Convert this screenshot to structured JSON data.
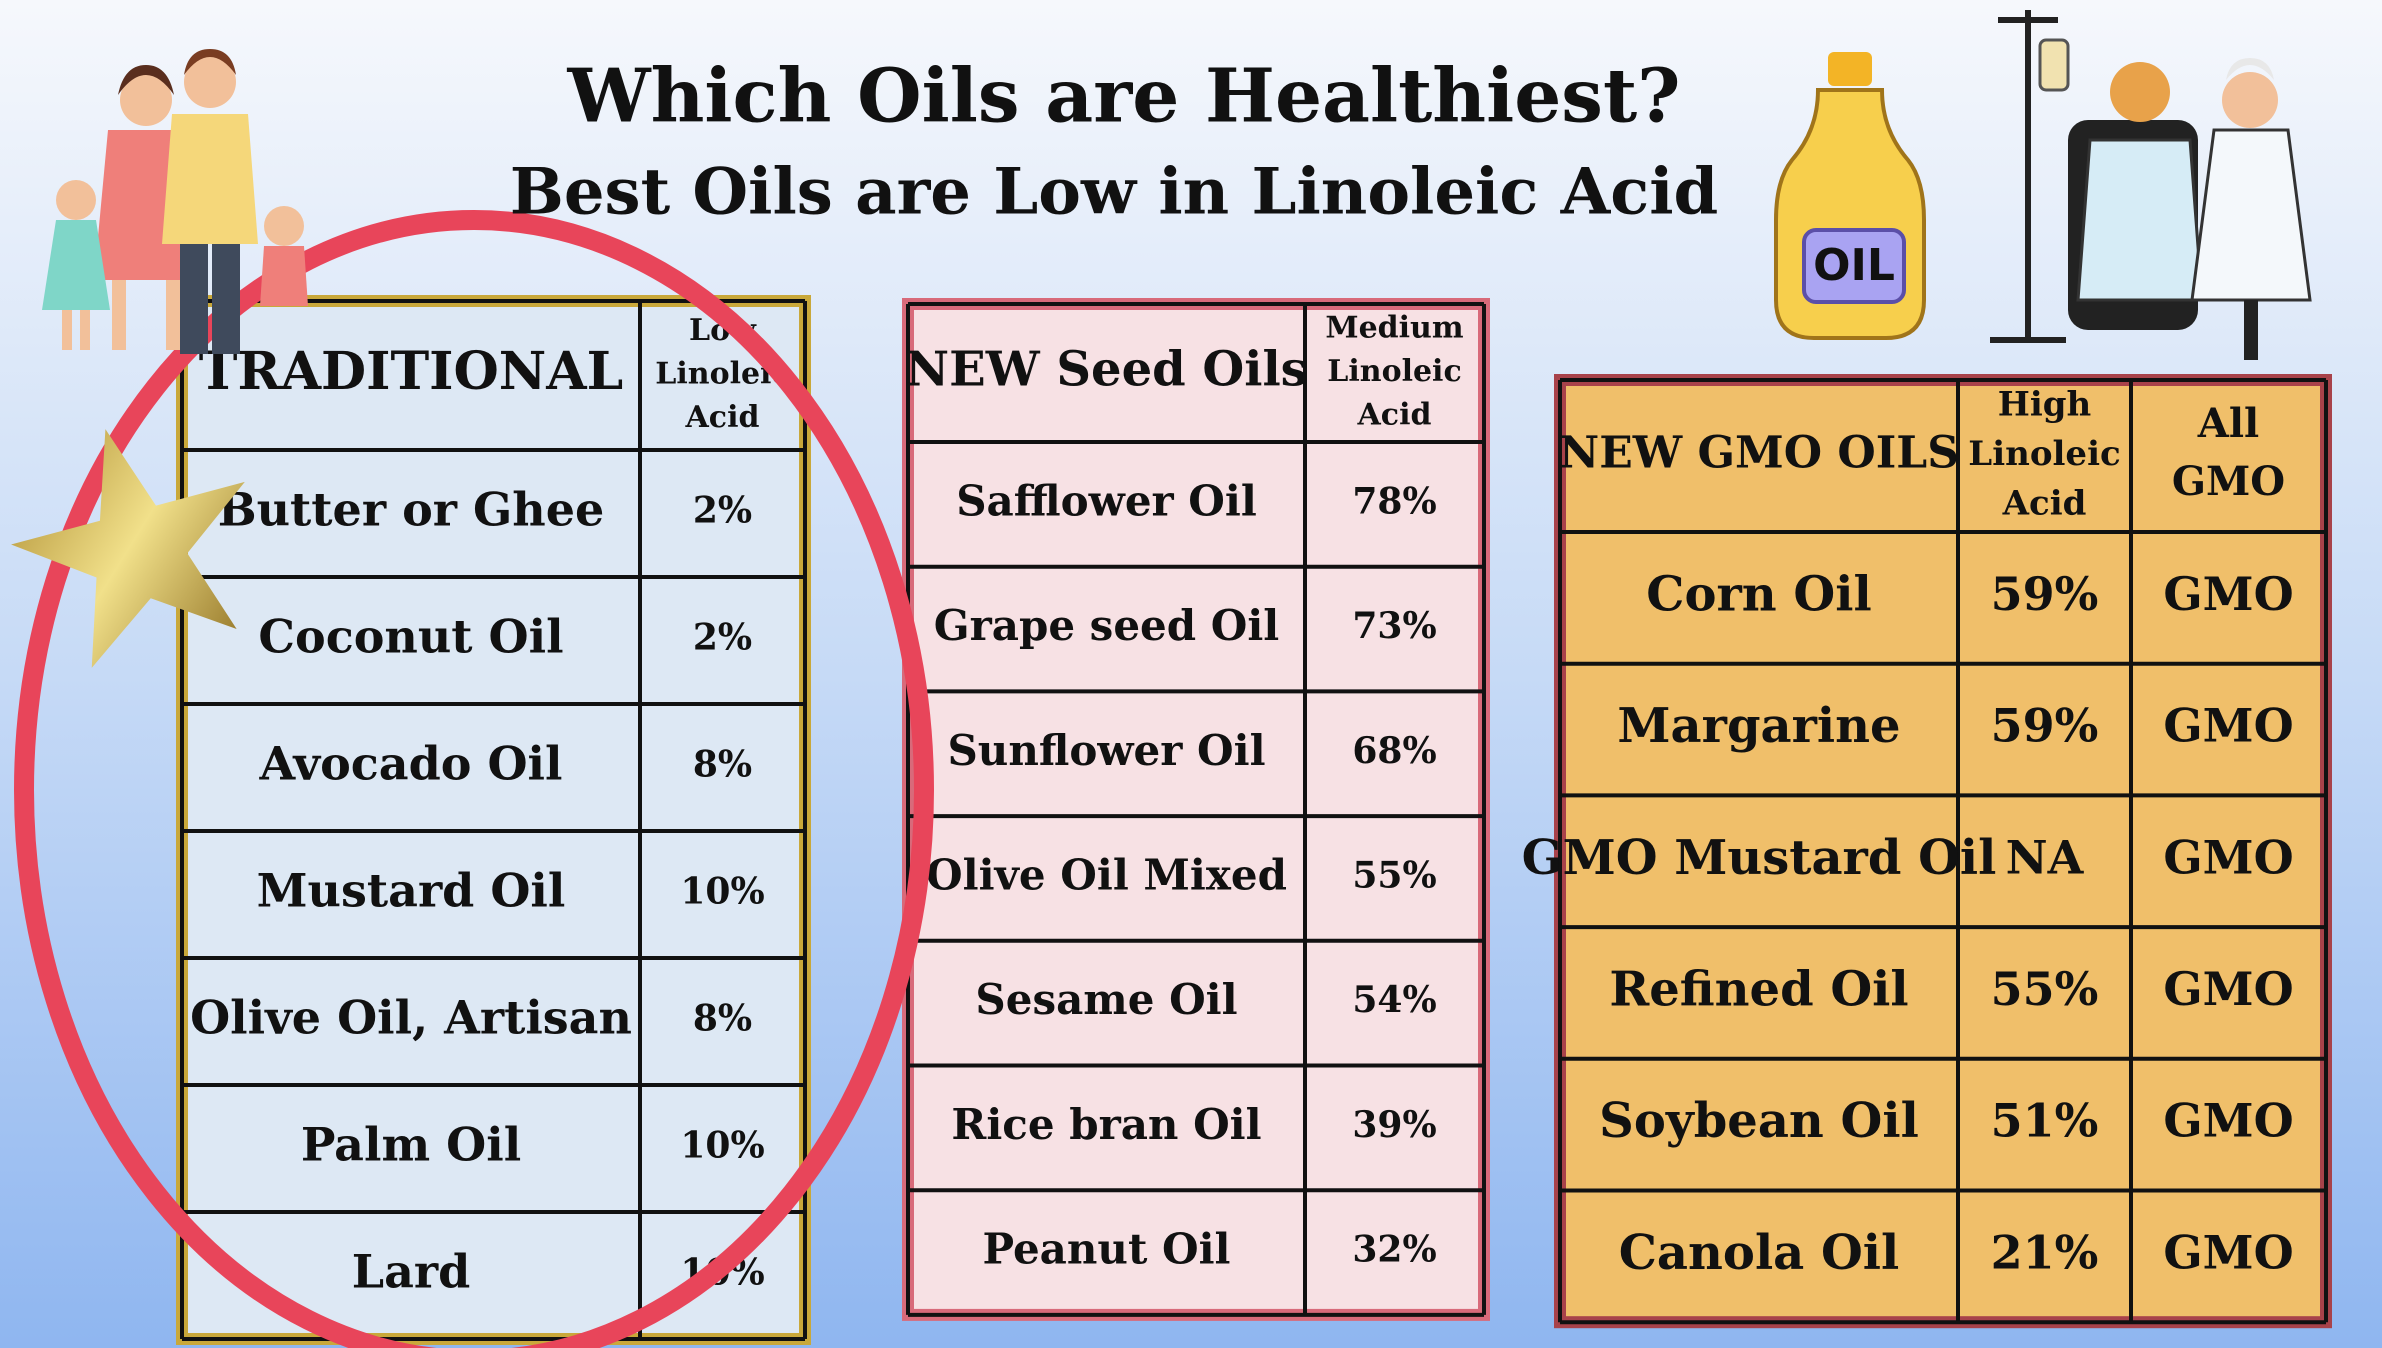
{
  "header": {
    "title": "Which Oils are Healthiest?",
    "subtitle": "Best Oils are Low in Linoleic Acid"
  },
  "bottle_label": "OIL",
  "tables": [
    {
      "header": [
        "TRADITIONAL",
        [
          "Low",
          "Linoleic",
          "Acid"
        ]
      ],
      "rows": [
        [
          "Butter or Ghee",
          "2%"
        ],
        [
          "Coconut Oil",
          "2%"
        ],
        [
          "Avocado Oil",
          "8%"
        ],
        [
          "Mustard Oil",
          "10%"
        ],
        [
          "Olive Oil, Artisan",
          "8%"
        ],
        [
          "Palm Oil",
          "10%"
        ],
        [
          "Lard",
          "10%"
        ]
      ]
    },
    {
      "header": [
        "NEW Seed Oils",
        [
          "Medium",
          "Linoleic",
          "Acid"
        ]
      ],
      "rows": [
        [
          "Safflower Oil",
          "78%"
        ],
        [
          "Grape seed Oil",
          "73%"
        ],
        [
          "Sunflower Oil",
          "68%"
        ],
        [
          "Olive Oil Mixed",
          "55%"
        ],
        [
          "Sesame Oil",
          "54%"
        ],
        [
          "Rice bran Oil",
          "39%"
        ],
        [
          "Peanut Oil",
          "32%"
        ]
      ]
    },
    {
      "header": [
        "NEW GMO OILS",
        [
          "High",
          "Linoleic",
          "Acid"
        ],
        [
          "All",
          "GMO"
        ]
      ],
      "rows": [
        [
          "Corn Oil",
          "59%",
          "GMO"
        ],
        [
          "Margarine",
          "59%",
          "GMO"
        ],
        [
          "GMO Mustard Oil",
          "NA",
          "GMO"
        ],
        [
          "Refined Oil",
          "55%",
          "GMO"
        ],
        [
          "Soybean Oil",
          "51%",
          "GMO"
        ],
        [
          "Canola Oil",
          "21%",
          "GMO"
        ]
      ]
    }
  ]
}
